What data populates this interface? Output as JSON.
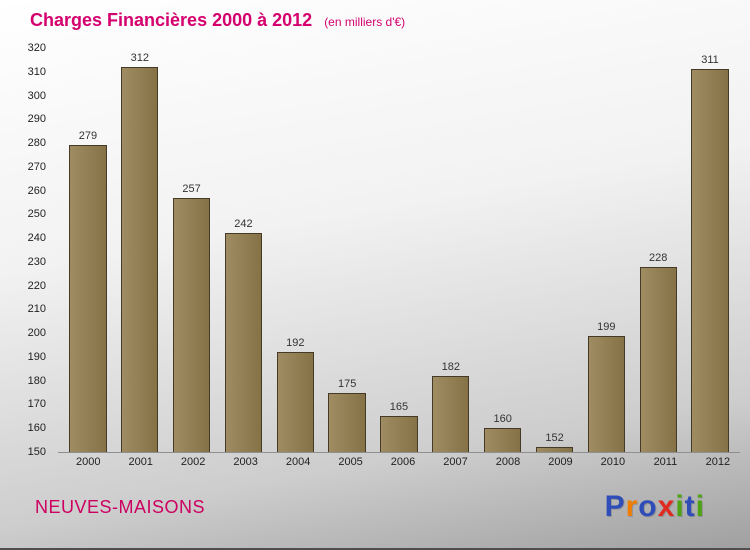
{
  "chart_data": {
    "type": "bar",
    "title": "Charges Financières 2000 à 2012",
    "subtitle": "(en milliers d'€)",
    "categories": [
      "2000",
      "2001",
      "2002",
      "2003",
      "2004",
      "2005",
      "2006",
      "2007",
      "2008",
      "2009",
      "2010",
      "2011",
      "2012"
    ],
    "values": [
      279,
      312,
      257,
      242,
      192,
      175,
      165,
      182,
      160,
      152,
      199,
      228,
      311
    ],
    "ylabel": "",
    "xlabel": "",
    "ylim": [
      150,
      320
    ],
    "ytick_step": 10,
    "grid": false,
    "legend": "none",
    "bar_color_light": "#a08c62",
    "bar_color_dark": "#857246",
    "bar_border_color": "#453a26"
  },
  "colors": {
    "title": "#d4006e",
    "company": "#cc0060",
    "tick_text": "#222222",
    "value_label": "#333333"
  },
  "footer": {
    "company": "NEUVES-MAISONS",
    "logo_letters": [
      {
        "ch": "P",
        "color": "#2f4db8"
      },
      {
        "ch": "r",
        "color": "#f07d00"
      },
      {
        "ch": "o",
        "color": "#2f4db8"
      },
      {
        "ch": "x",
        "color": "#e02b20"
      },
      {
        "ch": "i",
        "color": "#4ea312"
      },
      {
        "ch": "t",
        "color": "#2f4db8"
      },
      {
        "ch": "i",
        "color": "#4ea312"
      }
    ]
  }
}
